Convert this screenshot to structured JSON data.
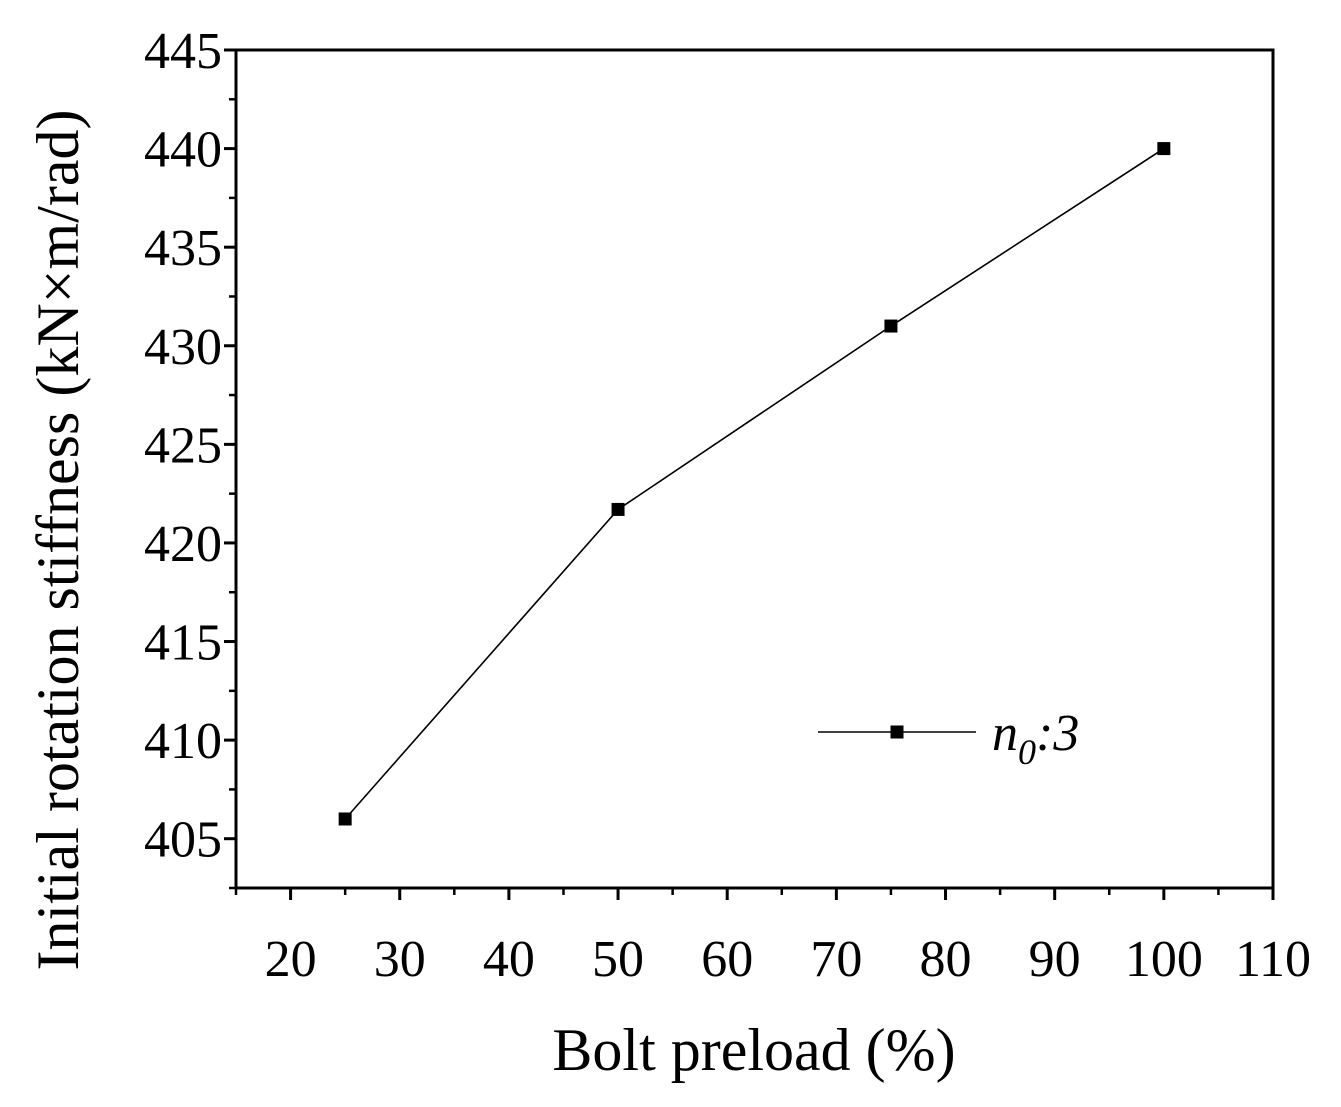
{
  "chart_data": {
    "type": "line",
    "xlabel": "Bolt preload (%)",
    "ylabel": "Initial rotation stiffness (kN×m/rad)",
    "xlim": [
      15,
      110
    ],
    "ylim": [
      402.5,
      445
    ],
    "xticks": [
      20,
      30,
      40,
      50,
      60,
      70,
      80,
      90,
      100,
      110
    ],
    "yticks": [
      405,
      410,
      415,
      420,
      425,
      430,
      435,
      440,
      445
    ],
    "grid": false,
    "legend_position": "bottom-right",
    "series": [
      {
        "name": "n0:3",
        "name_base": "n",
        "name_sub": "0",
        "name_rest": ":3",
        "marker": "square",
        "color": "#000000",
        "x": [
          25,
          50,
          75,
          100
        ],
        "y": [
          406,
          421.7,
          431,
          440
        ]
      }
    ]
  }
}
